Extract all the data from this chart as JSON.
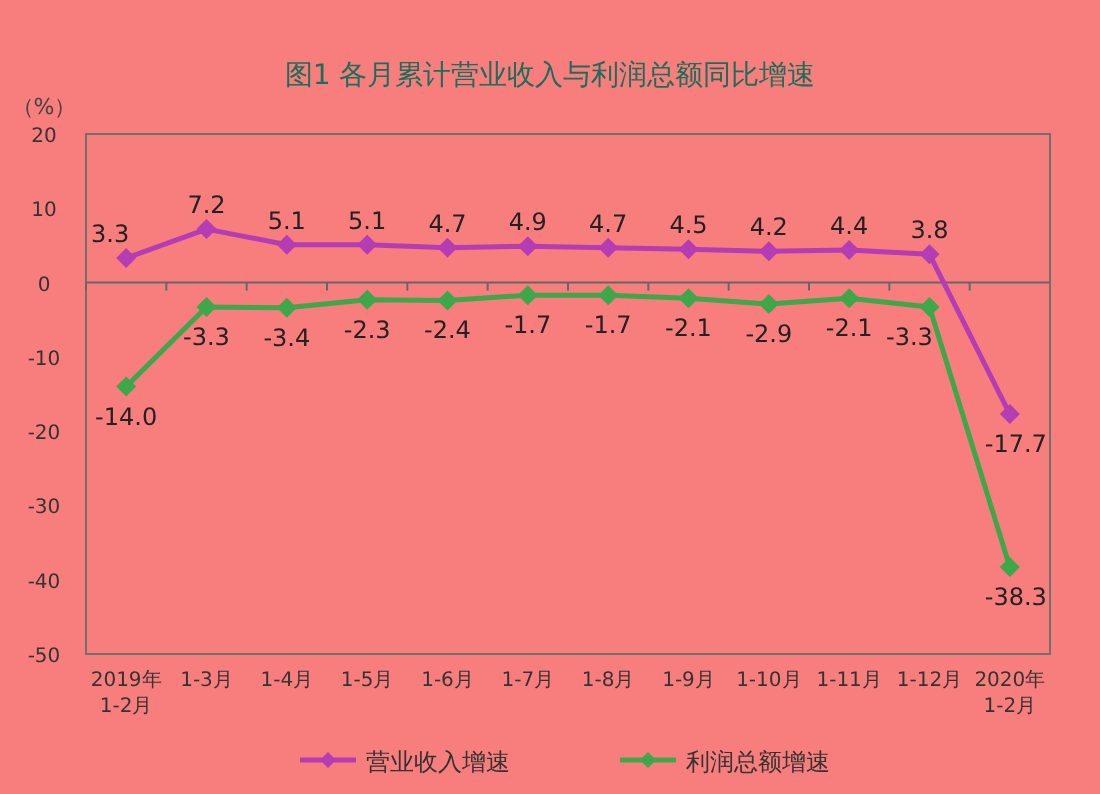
{
  "chart_data": {
    "type": "line",
    "title": "图1  各月累计营业收入与利润总额同比增速",
    "ylabel": "（%）",
    "categories": [
      "2019年\n1-2月",
      "1-3月",
      "1-4月",
      "1-5月",
      "1-6月",
      "1-7月",
      "1-8月",
      "1-9月",
      "1-10月",
      "1-11月",
      "1-12月",
      "2020年\n1-2月"
    ],
    "series": [
      {
        "name": "营业收入增速",
        "color": "#b43cb4",
        "values": [
          3.3,
          7.2,
          5.1,
          5.1,
          4.7,
          4.9,
          4.7,
          4.5,
          4.2,
          4.4,
          3.8,
          -17.7
        ],
        "value_labels": [
          "3.3",
          "7.2",
          "5.1",
          "5.1",
          "4.7",
          "4.9",
          "4.7",
          "4.5",
          "4.2",
          "4.4",
          "3.8",
          "-17.7"
        ]
      },
      {
        "name": "利润总额增速",
        "color": "#3ca84a",
        "values": [
          -14.0,
          -3.3,
          -3.4,
          -2.3,
          -2.4,
          -1.7,
          -1.7,
          -2.1,
          -2.9,
          -2.1,
          -3.3,
          -38.3
        ],
        "value_labels": [
          "-14.0",
          "-3.3",
          "-3.4",
          "-2.3",
          "-2.4",
          "-1.7",
          "-1.7",
          "-2.1",
          "-2.9",
          "-2.1",
          "-3.3",
          "-38.3"
        ]
      }
    ],
    "ylim": [
      -50,
      20
    ],
    "yticks": [
      20,
      10,
      0,
      -10,
      -20,
      -30,
      -40,
      -50
    ],
    "ref_lines": [
      {
        "axis": "y",
        "value": 0,
        "color": "#666666"
      }
    ],
    "marker": "diamond",
    "legend": "bottom",
    "grid": false
  }
}
